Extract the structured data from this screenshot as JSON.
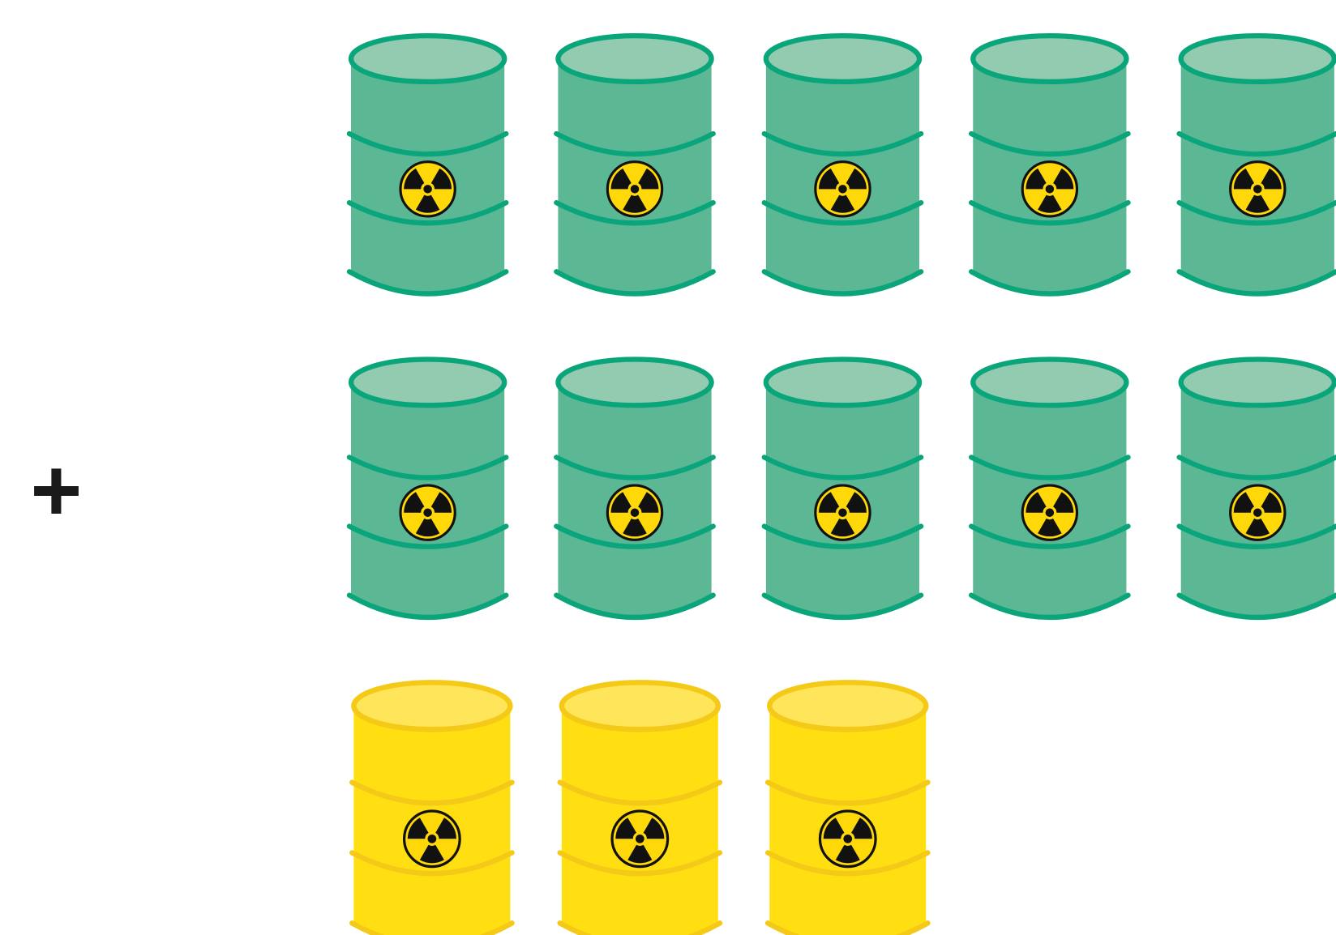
{
  "symbol": "+"
}
